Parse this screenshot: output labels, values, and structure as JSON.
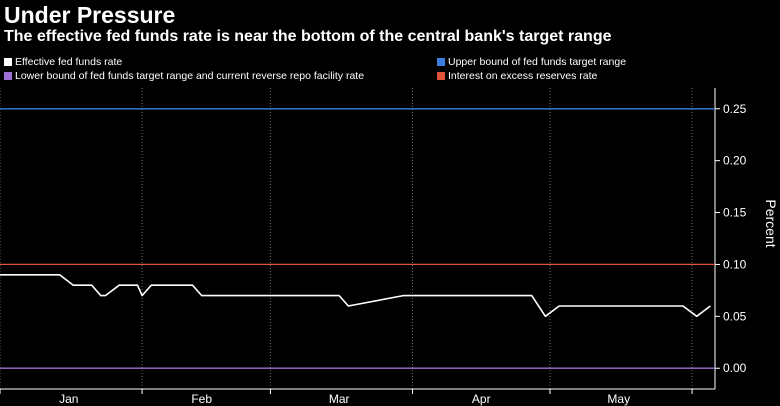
{
  "chart_data": {
    "type": "line",
    "title": "Under Pressure",
    "subtitle": "The effective fed funds rate is near the bottom of the central bank's target range",
    "ylabel": "Percent",
    "xlabel": "",
    "ylim": [
      -0.02,
      0.27
    ],
    "y_ticks": [
      "0.00",
      "0.05",
      "0.10",
      "0.15",
      "0.20",
      "0.25"
    ],
    "y_tick_values": [
      0.0,
      0.05,
      0.1,
      0.15,
      0.2,
      0.25
    ],
    "x_tick_labels": [
      "Jan",
      "Feb",
      "Mar",
      "Apr",
      "May"
    ],
    "x_range": [
      "2021-01-01",
      "2021-06-06"
    ],
    "x_ticks": [
      "2021-01-01",
      "2021-02-01",
      "2021-03-01",
      "2021-04-01",
      "2021-05-01",
      "2021-06-01"
    ],
    "x_label_positions": [
      "2021-01-16",
      "2021-02-14",
      "2021-03-16",
      "2021-04-16",
      "2021-05-16"
    ],
    "grid": "vertical dotted",
    "legend_position": "top",
    "series": [
      {
        "name": "Effective fed funds rate",
        "color": "#ffffff",
        "x": [
          "2021-01-01",
          "2021-01-14",
          "2021-01-17",
          "2021-01-21",
          "2021-01-23",
          "2021-01-24",
          "2021-01-27",
          "2021-01-31",
          "2021-02-01",
          "2021-02-03",
          "2021-02-05",
          "2021-02-12",
          "2021-02-14",
          "2021-02-16",
          "2021-03-16",
          "2021-03-18",
          "2021-03-30",
          "2021-04-27",
          "2021-04-30",
          "2021-05-03",
          "2021-05-30",
          "2021-06-02",
          "2021-06-05"
        ],
        "values": [
          0.09,
          0.09,
          0.08,
          0.08,
          0.07,
          0.07,
          0.08,
          0.08,
          0.07,
          0.08,
          0.08,
          0.08,
          0.07,
          0.07,
          0.07,
          0.06,
          0.07,
          0.07,
          0.05,
          0.06,
          0.06,
          0.05,
          0.06
        ]
      },
      {
        "name": "Upper bound of fed funds target range",
        "color": "#3b7fde",
        "x": [
          "2021-01-01",
          "2021-06-06"
        ],
        "values": [
          0.25,
          0.25
        ]
      },
      {
        "name": "Lower bound of fed funds target range and current reverse repo facility rate",
        "color": "#9e6fd6",
        "x": [
          "2021-01-01",
          "2021-06-06"
        ],
        "values": [
          0.0,
          0.0
        ]
      },
      {
        "name": "Interest on excess reserves rate",
        "color": "#e0553a",
        "x": [
          "2021-01-01",
          "2021-06-06"
        ],
        "values": [
          0.1,
          0.1
        ]
      }
    ]
  }
}
